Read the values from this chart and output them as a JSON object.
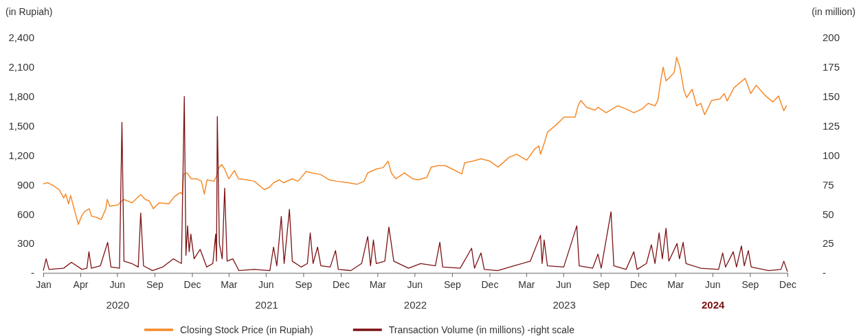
{
  "chart_data": {
    "type": "line",
    "ylabel": "(in Rupiah)",
    "y2label": "(in million)",
    "xlim": [
      "2020-01-01",
      "2024-12-31"
    ],
    "xticks": [
      {
        "value": "2020-01-01",
        "label": "Jan"
      },
      {
        "value": "2020-04-01",
        "label": "Apr"
      },
      {
        "value": "2020-06-30",
        "label": "Jun"
      },
      {
        "value": "2020-09-30",
        "label": "Sep"
      },
      {
        "value": "2020-12-31",
        "label": "Dec"
      },
      {
        "value": "2021-03-31",
        "label": "Mar"
      },
      {
        "value": "2021-06-30",
        "label": "Jun"
      },
      {
        "value": "2021-09-30",
        "label": "Sep"
      },
      {
        "value": "2021-12-31",
        "label": "Dec"
      },
      {
        "value": "2022-03-31",
        "label": "Mar"
      },
      {
        "value": "2022-06-30",
        "label": "Jun"
      },
      {
        "value": "2022-09-30",
        "label": "Sep"
      },
      {
        "value": "2022-12-31",
        "label": "Dec"
      },
      {
        "value": "2023-03-31",
        "label": "Mar"
      },
      {
        "value": "2023-06-30",
        "label": "Jun"
      },
      {
        "value": "2023-09-30",
        "label": "Sep"
      },
      {
        "value": "2023-12-31",
        "label": "Dec"
      },
      {
        "value": "2024-03-31",
        "label": "Mar"
      },
      {
        "value": "2024-06-30",
        "label": "Jun"
      },
      {
        "value": "2024-09-30",
        "label": "Sep"
      },
      {
        "value": "2024-12-31",
        "label": "Dec"
      }
    ],
    "ylim": [
      0,
      2400
    ],
    "yticks": [
      {
        "value": 0,
        "label": "-"
      },
      300,
      600,
      900,
      {
        "value": 1200,
        "label": "1,200"
      },
      {
        "value": 1500,
        "label": "1,500"
      },
      {
        "value": 1800,
        "label": "1,800"
      },
      {
        "value": 2100,
        "label": "2,100"
      },
      {
        "value": 2400,
        "label": "2,400"
      }
    ],
    "y2lim": [
      0,
      200
    ],
    "y2ticks": [
      {
        "value": 0,
        "label": "-"
      },
      25,
      50,
      75,
      100,
      125,
      150,
      175,
      200
    ],
    "legend": "bottom",
    "annotations": [
      "2020",
      "2021",
      "2022",
      "2023",
      "2024"
    ],
    "series": [
      {
        "name": "Closing Stock Price (in Rupiah)",
        "color": "#f58a2a",
        "x": [
          "2020-01-01",
          "2020-01-12",
          "2020-01-26",
          "2020-02-09",
          "2020-02-20",
          "2020-02-25",
          "2020-03-03",
          "2020-03-08",
          "2020-03-17",
          "2020-03-27",
          "2020-04-04",
          "2020-04-11",
          "2020-04-23",
          "2020-04-28",
          "2020-05-12",
          "2020-05-22",
          "2020-06-02",
          "2020-06-06",
          "2020-06-12",
          "2020-07-02",
          "2020-07-16",
          "2020-08-06",
          "2020-08-27",
          "2020-09-07",
          "2020-09-17",
          "2020-09-27",
          "2020-10-11",
          "2020-11-04",
          "2020-11-18",
          "2020-12-02",
          "2020-12-07",
          "2020-12-10",
          "2020-12-19",
          "2020-12-29",
          "2021-01-12",
          "2021-01-23",
          "2021-01-30",
          "2021-02-06",
          "2021-02-23",
          "2021-03-01",
          "2021-03-07",
          "2021-03-14",
          "2021-03-21",
          "2021-03-31",
          "2021-04-14",
          "2021-04-24",
          "2021-05-15",
          "2021-06-02",
          "2021-06-26",
          "2021-07-09",
          "2021-07-19",
          "2021-08-02",
          "2021-08-13",
          "2021-09-03",
          "2021-09-17",
          "2021-10-07",
          "2021-10-21",
          "2021-11-11",
          "2021-12-02",
          "2021-12-22",
          "2022-01-19",
          "2022-02-09",
          "2022-02-26",
          "2022-03-07",
          "2022-03-28",
          "2022-04-14",
          "2022-04-26",
          "2022-05-04",
          "2022-05-15",
          "2022-06-05",
          "2022-06-26",
          "2022-07-09",
          "2022-07-30",
          "2022-08-10",
          "2022-08-27",
          "2022-09-13",
          "2022-10-03",
          "2022-10-24",
          "2022-10-31",
          "2022-11-20",
          "2022-12-10",
          "2023-01-01",
          "2023-01-21",
          "2023-02-17",
          "2023-03-08",
          "2023-04-01",
          "2023-04-21",
          "2023-05-01",
          "2023-05-05",
          "2023-05-15",
          "2023-05-22",
          "2023-06-11",
          "2023-07-02",
          "2023-07-29",
          "2023-08-05",
          "2023-08-12",
          "2023-08-26",
          "2023-09-16",
          "2023-09-23",
          "2023-10-13",
          "2023-11-10",
          "2023-11-30",
          "2023-12-20",
          "2024-01-10",
          "2024-01-24",
          "2024-02-10",
          "2024-02-17",
          "2024-02-24",
          "2024-03-01",
          "2024-03-08",
          "2024-03-18",
          "2024-03-28",
          "2024-04-03",
          "2024-04-11",
          "2024-04-21",
          "2024-04-28",
          "2024-05-11",
          "2024-05-22",
          "2024-06-01",
          "2024-06-11",
          "2024-06-28",
          "2024-07-18",
          "2024-07-29",
          "2024-08-05",
          "2024-08-22",
          "2024-09-18",
          "2024-10-02",
          "2024-10-15",
          "2024-11-05",
          "2024-11-25",
          "2024-12-09",
          "2024-12-22",
          "2024-12-29"
        ],
        "values": [
          910,
          920,
          890,
          850,
          765,
          805,
          705,
          790,
          650,
          495,
          580,
          625,
          655,
          580,
          565,
          545,
          650,
          750,
          680,
          695,
          750,
          715,
          800,
          750,
          735,
          655,
          715,
          705,
          780,
          820,
          805,
          1005,
          1020,
          960,
          960,
          935,
          805,
          950,
          935,
          990,
          1075,
          1105,
          1060,
          960,
          1045,
          960,
          950,
          935,
          850,
          875,
          920,
          950,
          920,
          960,
          935,
          1035,
          1020,
          1005,
          950,
          935,
          920,
          905,
          935,
          1020,
          1060,
          1075,
          1140,
          1020,
          960,
          1020,
          960,
          950,
          975,
          1080,
          1095,
          1095,
          1055,
          1010,
          1125,
          1140,
          1165,
          1140,
          1080,
          1180,
          1210,
          1150,
          1265,
          1295,
          1210,
          1335,
          1435,
          1505,
          1590,
          1590,
          1705,
          1760,
          1690,
          1660,
          1690,
          1635,
          1705,
          1675,
          1635,
          1675,
          1730,
          1705,
          1760,
          1960,
          2100,
          1960,
          2000,
          2045,
          2200,
          2100,
          1860,
          1790,
          1875,
          1705,
          1730,
          1615,
          1760,
          1775,
          1830,
          1755,
          1890,
          1985,
          1830,
          1915,
          1815,
          1745,
          1805,
          1655,
          1710
        ]
      },
      {
        "name": "Transaction Volume (in millions) -right scale",
        "color": "#7b1113",
        "axis": "y2",
        "x": [
          "2020-01-01",
          "2020-01-08",
          "2020-01-15",
          "2020-02-20",
          "2020-03-10",
          "2020-04-05",
          "2020-04-17",
          "2020-04-22",
          "2020-04-28",
          "2020-05-20",
          "2020-06-07",
          "2020-06-15",
          "2020-07-06",
          "2020-07-12",
          "2020-07-17",
          "2020-08-05",
          "2020-08-21",
          "2020-08-27",
          "2020-09-03",
          "2020-09-25",
          "2020-10-20",
          "2020-11-15",
          "2020-12-05",
          "2020-12-12",
          "2020-12-16",
          "2020-12-20",
          "2020-12-24",
          "2020-12-28",
          "2021-01-05",
          "2021-01-20",
          "2021-02-05",
          "2021-02-20",
          "2021-02-27",
          "2021-03-01",
          "2021-03-03",
          "2021-03-08",
          "2021-03-15",
          "2021-03-21",
          "2021-03-27",
          "2021-04-10",
          "2021-04-25",
          "2021-06-01",
          "2021-07-10",
          "2021-07-19",
          "2021-07-27",
          "2021-08-07",
          "2021-08-14",
          "2021-08-27",
          "2021-09-03",
          "2021-09-25",
          "2021-10-10",
          "2021-10-17",
          "2021-10-24",
          "2021-11-04",
          "2021-11-12",
          "2021-12-05",
          "2021-12-18",
          "2021-12-25",
          "2022-01-25",
          "2022-02-20",
          "2022-03-07",
          "2022-03-14",
          "2022-03-21",
          "2022-03-28",
          "2022-04-18",
          "2022-04-28",
          "2022-05-10",
          "2022-06-15",
          "2022-07-15",
          "2022-08-20",
          "2022-08-31",
          "2022-09-07",
          "2022-10-20",
          "2022-11-17",
          "2022-11-24",
          "2022-12-10",
          "2022-12-18",
          "2023-01-20",
          "2023-03-01",
          "2023-04-10",
          "2023-05-05",
          "2023-05-09",
          "2023-05-14",
          "2023-05-22",
          "2023-07-01",
          "2023-08-02",
          "2023-08-08",
          "2023-09-10",
          "2023-09-23",
          "2023-10-01",
          "2023-10-25",
          "2023-11-01",
          "2023-12-01",
          "2023-12-20",
          "2023-12-28",
          "2024-01-20",
          "2024-02-01",
          "2024-02-10",
          "2024-02-20",
          "2024-02-28",
          "2024-03-08",
          "2024-03-15",
          "2024-04-04",
          "2024-04-10",
          "2024-04-19",
          "2024-04-26",
          "2024-06-01",
          "2024-07-15",
          "2024-07-25",
          "2024-08-01",
          "2024-08-20",
          "2024-08-28",
          "2024-09-09",
          "2024-09-16",
          "2024-09-26",
          "2024-10-03",
          "2024-11-15",
          "2024-12-15",
          "2024-12-22",
          "2024-12-31"
        ],
        "values": [
          2,
          12,
          3,
          4,
          9,
          3,
          4,
          18,
          4,
          6,
          26,
          5,
          4,
          128,
          10,
          8,
          5,
          51,
          6,
          2,
          5,
          12,
          8,
          150,
          15,
          40,
          18,
          33,
          12,
          20,
          5,
          8,
          33,
          10,
          133,
          25,
          12,
          72,
          10,
          12,
          2,
          3,
          2,
          22,
          6,
          48,
          8,
          54,
          10,
          5,
          8,
          34,
          8,
          22,
          6,
          5,
          19,
          3,
          2,
          8,
          31,
          6,
          28,
          8,
          10,
          39,
          10,
          4,
          8,
          6,
          26,
          5,
          4,
          21,
          4,
          17,
          3,
          2,
          6,
          10,
          32,
          8,
          28,
          6,
          5,
          40,
          6,
          4,
          16,
          4,
          52,
          6,
          3,
          18,
          3,
          8,
          24,
          8,
          34,
          12,
          38,
          10,
          25,
          12,
          26,
          8,
          4,
          3,
          17,
          5,
          18,
          5,
          23,
          6,
          19,
          5,
          2,
          3,
          10,
          1
        ]
      }
    ]
  }
}
